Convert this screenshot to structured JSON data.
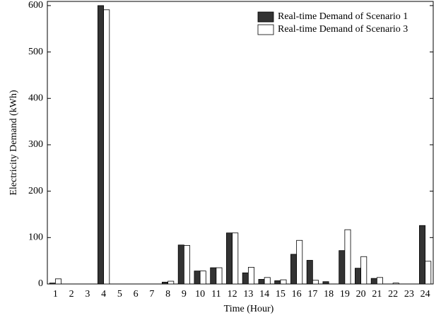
{
  "chart_data": {
    "type": "bar",
    "x_label": "Time (Hour)",
    "y_label": "Electricity Demand (kWh)",
    "categories": [
      "1",
      "2",
      "3",
      "4",
      "5",
      "6",
      "7",
      "8",
      "9",
      "10",
      "11",
      "12",
      "13",
      "14",
      "15",
      "16",
      "17",
      "18",
      "19",
      "20",
      "21",
      "22",
      "23",
      "24"
    ],
    "series": [
      {
        "name": "Real-time Demand of Scenario 1",
        "color": "#333333",
        "values": [
          2,
          0,
          0,
          600,
          0,
          0,
          0,
          4,
          84,
          28,
          35,
          110,
          24,
          10,
          7,
          64,
          51,
          5,
          72,
          34,
          12,
          0,
          0,
          126
        ]
      },
      {
        "name": "Real-time Demand of Scenario 3",
        "color": "#ffffff",
        "values": [
          11,
          0,
          0,
          591,
          0,
          0,
          0,
          6,
          83,
          28,
          35,
          110,
          36,
          14,
          9,
          94,
          8,
          0,
          117,
          59,
          14,
          2,
          0,
          49
        ]
      }
    ],
    "ylim": [
      0,
      609
    ],
    "yticks": [
      0,
      100,
      200,
      300,
      400,
      500,
      600
    ],
    "legend": "upper right"
  }
}
